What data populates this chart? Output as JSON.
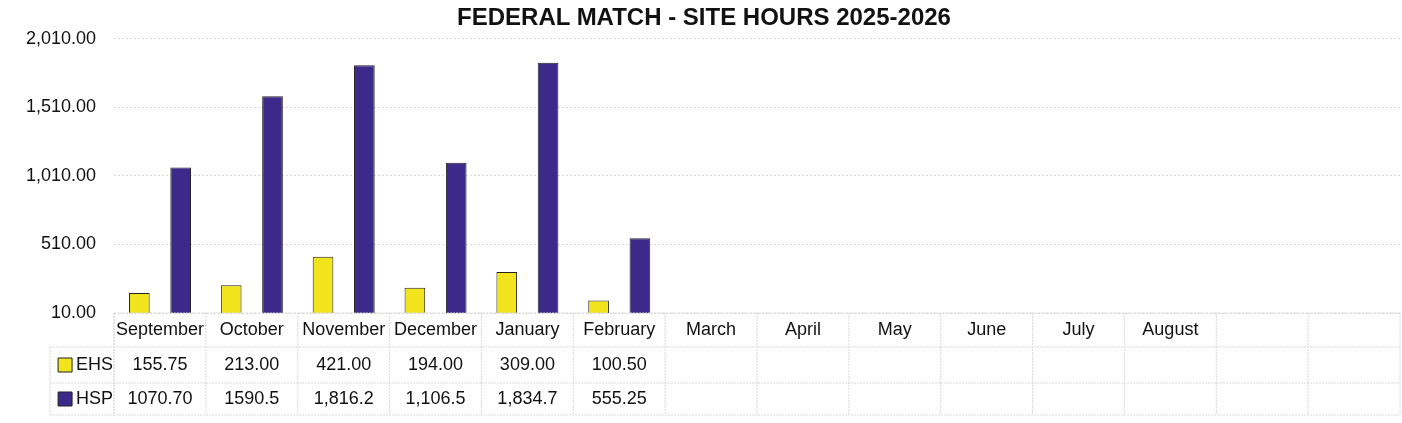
{
  "chart_data": {
    "type": "bar",
    "title": "FEDERAL MATCH - SITE HOURS 2025-2026",
    "categories": [
      "September",
      "October",
      "November",
      "December",
      "January",
      "February",
      "March",
      "April",
      "May",
      "June",
      "July",
      "August",
      null,
      null
    ],
    "series": [
      {
        "name": "EHS",
        "color": "#f2e41c",
        "values": [
          155.75,
          213.0,
          421.0,
          194.0,
          309.0,
          100.5,
          null,
          null,
          null,
          null,
          null,
          null,
          null,
          null
        ],
        "value_labels": [
          "155.75",
          "213.00",
          "421.00",
          "194.00",
          "309.00",
          "100.50",
          null,
          null,
          null,
          null,
          null,
          null,
          null,
          null
        ]
      },
      {
        "name": "HSP",
        "color": "#3b2a8a",
        "values": [
          1070.7,
          1590.5,
          1816.2,
          1106.5,
          1834.7,
          555.25,
          null,
          null,
          null,
          null,
          null,
          null,
          null,
          null
        ],
        "value_labels": [
          "1070.70",
          "1590.5",
          "1,816.2",
          "1,106.5",
          "1,834.7",
          "555.25",
          null,
          null,
          null,
          null,
          null,
          null,
          null,
          null
        ]
      }
    ],
    "ylim": [
      10,
      2010
    ],
    "yticks": [
      {
        "value": 10,
        "label": "10.00"
      },
      {
        "value": 510,
        "label": "510.00"
      },
      {
        "value": 1010,
        "label": "1,010.00"
      },
      {
        "value": 1510,
        "label": "1,510.00"
      },
      {
        "value": 2010,
        "label": "2,010.00"
      }
    ],
    "grid": "y",
    "legend": "bottom"
  }
}
